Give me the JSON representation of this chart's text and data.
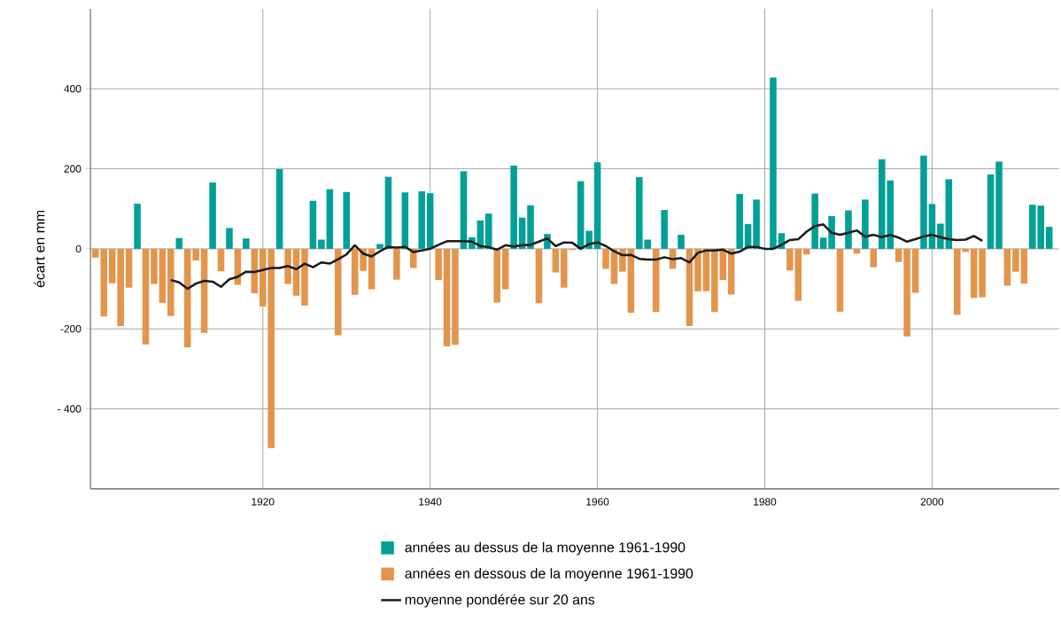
{
  "chart_data": {
    "type": "bar",
    "ylabel": "écart en mm",
    "x": [
      1900,
      1901,
      1902,
      1903,
      1904,
      1905,
      1906,
      1907,
      1908,
      1909,
      1910,
      1911,
      1912,
      1913,
      1914,
      1915,
      1916,
      1917,
      1918,
      1919,
      1920,
      1921,
      1922,
      1923,
      1924,
      1925,
      1926,
      1927,
      1928,
      1929,
      1930,
      1931,
      1932,
      1933,
      1934,
      1935,
      1936,
      1937,
      1938,
      1939,
      1940,
      1941,
      1942,
      1943,
      1944,
      1945,
      1946,
      1947,
      1948,
      1949,
      1950,
      1951,
      1952,
      1953,
      1954,
      1955,
      1956,
      1957,
      1958,
      1959,
      1960,
      1961,
      1962,
      1963,
      1964,
      1965,
      1966,
      1967,
      1968,
      1969,
      1970,
      1971,
      1972,
      1973,
      1974,
      1975,
      1976,
      1977,
      1978,
      1979,
      1980,
      1981,
      1982,
      1983,
      1984,
      1985,
      1986,
      1987,
      1988,
      1989,
      1990,
      1991,
      1992,
      1993,
      1994,
      1995,
      1996,
      1997,
      1998,
      1999,
      2000,
      2001,
      2002,
      2003,
      2004,
      2005,
      2006,
      2007,
      2008,
      2009,
      2010,
      2011,
      2012,
      2013,
      2014
    ],
    "xlim": [
      1899.4,
      2015.2
    ],
    "ylim": [
      -600,
      600
    ],
    "xticks": [
      1920,
      1940,
      1960,
      1980,
      2000
    ],
    "yticks": [
      {
        "value": -400,
        "label": "- 400"
      },
      -200,
      0,
      200,
      400
    ],
    "grid": true,
    "legend": "bottom",
    "series": [
      {
        "name": "années au dessus de la moyenne 1961-1990",
        "color": "#00a096",
        "values": [
          null,
          null,
          null,
          null,
          null,
          113,
          null,
          null,
          null,
          null,
          27,
          null,
          null,
          null,
          166,
          null,
          52,
          null,
          26,
          null,
          null,
          null,
          199,
          null,
          null,
          null,
          120,
          23,
          149,
          null,
          142,
          null,
          null,
          null,
          12,
          180,
          null,
          141,
          null,
          144,
          139,
          null,
          null,
          null,
          194,
          29,
          71,
          88,
          null,
          null,
          208,
          78,
          109,
          null,
          37,
          null,
          null,
          null,
          169,
          45,
          216,
          null,
          null,
          null,
          null,
          179,
          23,
          null,
          97,
          null,
          35,
          null,
          null,
          null,
          null,
          null,
          null,
          137,
          62,
          123,
          null,
          428,
          39,
          null,
          null,
          null,
          138,
          28,
          82,
          null,
          96,
          null,
          123,
          null,
          224,
          171,
          null,
          null,
          null,
          233,
          112,
          63,
          174,
          null,
          null,
          null,
          null,
          186,
          218,
          null,
          null,
          null,
          110,
          108,
          55
        ]
      },
      {
        "name": "années en dessous de la moyenne 1961-1990",
        "color": "#e3954c",
        "values": [
          -22,
          -169,
          -86,
          -193,
          -97,
          null,
          -239,
          -88,
          -135,
          -168,
          null,
          -246,
          -29,
          -210,
          null,
          -56,
          null,
          -90,
          null,
          -111,
          -144,
          -498,
          null,
          -88,
          -117,
          -142,
          null,
          null,
          null,
          -216,
          null,
          -115,
          -55,
          -101,
          null,
          null,
          -77,
          null,
          -48,
          null,
          null,
          -78,
          -244,
          -240,
          null,
          null,
          null,
          null,
          -134,
          -101,
          null,
          null,
          null,
          -136,
          null,
          -59,
          -97,
          -3,
          null,
          null,
          null,
          -50,
          -88,
          -57,
          -160,
          null,
          null,
          -158,
          null,
          -50,
          null,
          -193,
          -106,
          -106,
          -158,
          -78,
          -114,
          null,
          null,
          null,
          null,
          null,
          null,
          -54,
          -130,
          -14,
          null,
          null,
          null,
          -157,
          null,
          -12,
          null,
          -46,
          null,
          null,
          -33,
          -219,
          -110,
          null,
          null,
          null,
          null,
          -165,
          -8,
          -123,
          -121,
          null,
          null,
          -92,
          -57,
          -87,
          null,
          null,
          null
        ]
      },
      {
        "name": "moyenne pondérée sur 20 ans",
        "type": "line",
        "color": "#1a1a1a",
        "x": [
          1909,
          1910,
          1911,
          1912,
          1913,
          1914,
          1915,
          1916,
          1917,
          1918,
          1919,
          1920,
          1921,
          1922,
          1923,
          1924,
          1925,
          1926,
          1927,
          1928,
          1929,
          1930,
          1931,
          1932,
          1933,
          1934,
          1935,
          1936,
          1937,
          1938,
          1939,
          1940,
          1941,
          1942,
          1943,
          1944,
          1945,
          1946,
          1947,
          1948,
          1949,
          1950,
          1951,
          1952,
          1953,
          1954,
          1955,
          1956,
          1957,
          1958,
          1959,
          1960,
          1961,
          1962,
          1963,
          1964,
          1965,
          1966,
          1967,
          1968,
          1969,
          1970,
          1971,
          1972,
          1973,
          1974,
          1975,
          1976,
          1977,
          1978,
          1979,
          1980,
          1981,
          1982,
          1983,
          1984,
          1985,
          1986,
          1987,
          1988,
          1989,
          1990,
          1991,
          1992,
          1993,
          1994,
          1995,
          1996,
          1997,
          1998,
          1999,
          2000,
          2001,
          2002,
          2003,
          2004,
          2005,
          2006
        ],
        "values": [
          -78,
          -84,
          -100,
          -87,
          -80,
          -82,
          -95,
          -76,
          -70,
          -57,
          -58,
          -53,
          -48,
          -48,
          -43,
          -51,
          -37,
          -46,
          -34,
          -37,
          -26,
          -14,
          9,
          -12,
          -19,
          -6,
          5,
          3,
          5,
          -8,
          -4,
          0,
          10,
          19,
          19,
          19,
          18,
          7,
          4,
          -2,
          9,
          6,
          9,
          10,
          18,
          26,
          7,
          16,
          15,
          0,
          12,
          16,
          7,
          -6,
          -16,
          -15,
          -25,
          -27,
          -27,
          -21,
          -26,
          -23,
          -34,
          -10,
          -4,
          -4,
          -2,
          -12,
          -7,
          5,
          5,
          0,
          0,
          10,
          22,
          24,
          43,
          57,
          61,
          40,
          35,
          40,
          46,
          30,
          35,
          29,
          35,
          28,
          18,
          24,
          31,
          35,
          29,
          24,
          22,
          23,
          32,
          20
        ]
      }
    ]
  }
}
